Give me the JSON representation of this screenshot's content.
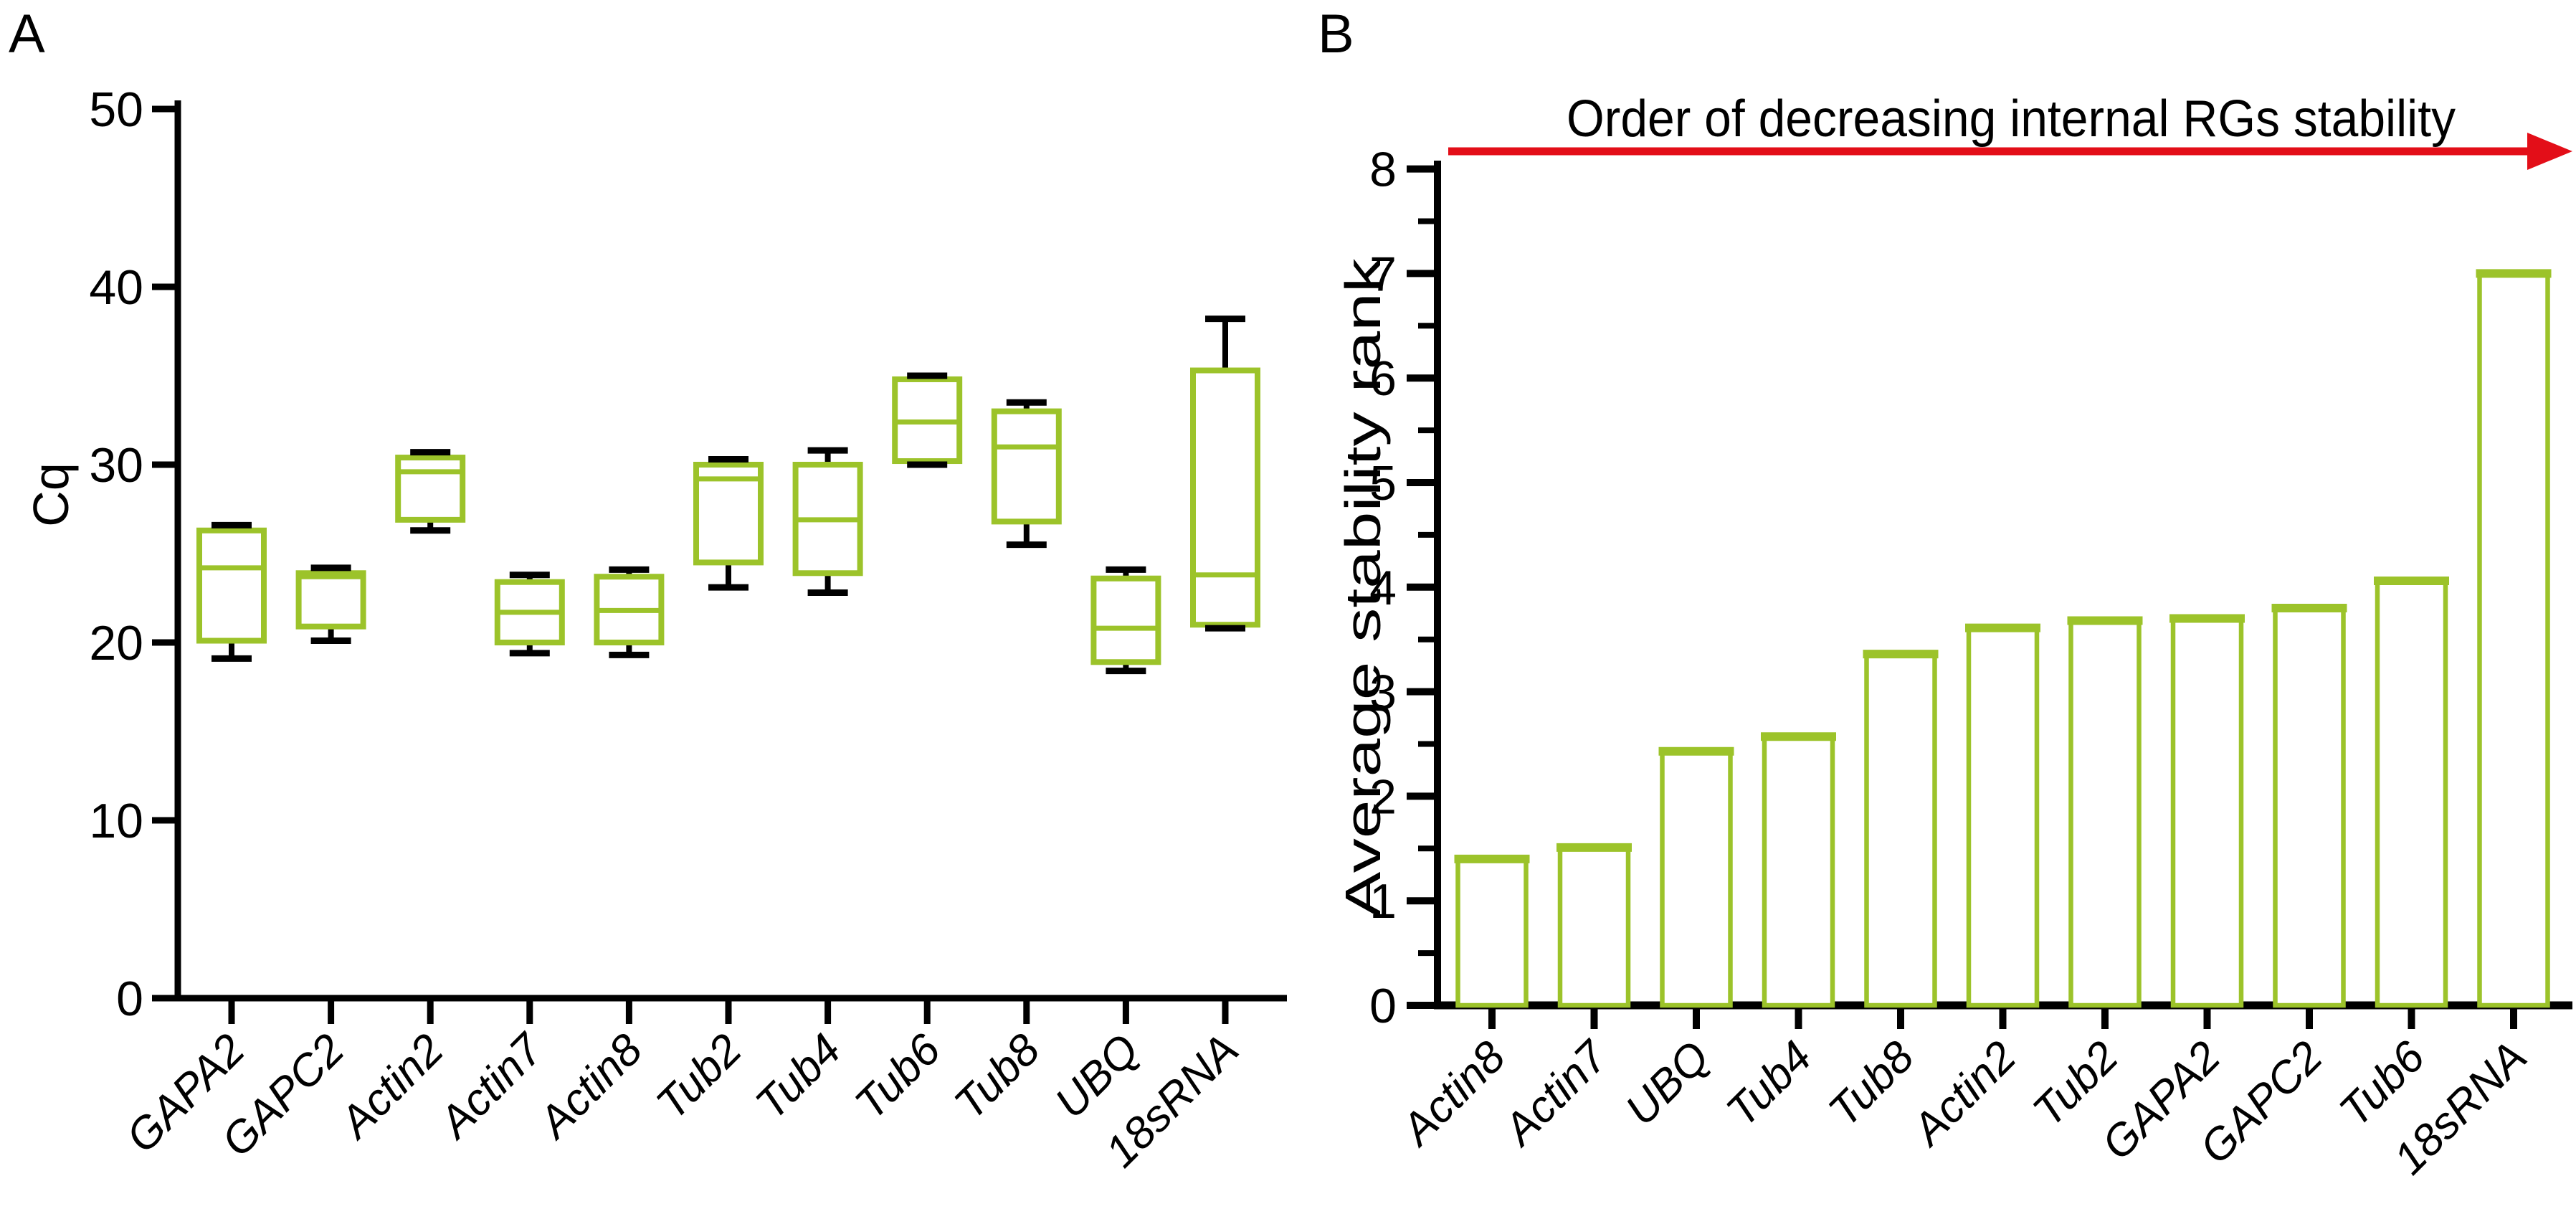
{
  "figure": {
    "panel_a_label": "A",
    "panel_b_label": "B"
  },
  "colors": {
    "box_green": "#9cc32a",
    "arrow_red": "#e30e18",
    "axis_black": "#000000",
    "background": "#ffffff"
  },
  "chart_data": [
    {
      "id": "panel-a",
      "type": "boxplot",
      "title": "",
      "xlabel": "",
      "ylabel": "Cq",
      "ylim": [
        0,
        50
      ],
      "yticks": [
        0,
        10,
        20,
        30,
        40,
        50
      ],
      "grid": "off",
      "categories": [
        "GAPA2",
        "GAPC2",
        "Actin2",
        "Actin7",
        "Actin8",
        "Tub2",
        "Tub4",
        "Tub6",
        "Tub8",
        "UBQ",
        "18sRNA"
      ],
      "boxes": [
        {
          "name": "GAPA2",
          "min": 19.1,
          "q1": 20.1,
          "median": 24.2,
          "q3": 26.3,
          "max": 26.6
        },
        {
          "name": "GAPC2",
          "min": 20.1,
          "q1": 20.9,
          "median": 23.7,
          "q3": 23.9,
          "max": 24.2
        },
        {
          "name": "Actin2",
          "min": 26.3,
          "q1": 26.9,
          "median": 29.6,
          "q3": 30.4,
          "max": 30.7
        },
        {
          "name": "Actin7",
          "min": 19.4,
          "q1": 20.0,
          "median": 21.7,
          "q3": 23.4,
          "max": 23.8
        },
        {
          "name": "Actin8",
          "min": 19.3,
          "q1": 20.0,
          "median": 21.8,
          "q3": 23.7,
          "max": 24.1
        },
        {
          "name": "Tub2",
          "min": 23.1,
          "q1": 24.5,
          "median": 29.2,
          "q3": 30.0,
          "max": 30.3
        },
        {
          "name": "Tub4",
          "min": 22.8,
          "q1": 23.9,
          "median": 26.9,
          "q3": 30.0,
          "max": 30.8
        },
        {
          "name": "Tub6",
          "min": 30.0,
          "q1": 30.2,
          "median": 32.4,
          "q3": 34.8,
          "max": 35.0
        },
        {
          "name": "Tub8",
          "min": 25.5,
          "q1": 26.8,
          "median": 31.0,
          "q3": 33.0,
          "max": 33.5
        },
        {
          "name": "UBQ",
          "min": 18.4,
          "q1": 18.9,
          "median": 20.8,
          "q3": 23.6,
          "max": 24.1
        },
        {
          "name": "18sRNA",
          "min": 20.8,
          "q1": 21.0,
          "median": 23.8,
          "q3": 35.3,
          "max": 38.2
        }
      ]
    },
    {
      "id": "panel-b",
      "type": "bar",
      "title": "Order of decreasing internal RGs stability",
      "xlabel": "",
      "ylabel": "Average stability rank",
      "ylim": [
        0,
        8
      ],
      "yticks": [
        0,
        1,
        2,
        3,
        4,
        5,
        6,
        7,
        8
      ],
      "minor_tick_step": 0.5,
      "grid": "off",
      "legend": "none",
      "categories": [
        "Actin8",
        "Actin7",
        "UBQ",
        "Tub4",
        "Tub8",
        "Actin2",
        "Tub2",
        "GAPA2",
        "GAPC2",
        "Tub6",
        "18sRNA"
      ],
      "values": [
        1.4,
        1.51,
        2.43,
        2.57,
        3.36,
        3.61,
        3.68,
        3.7,
        3.8,
        4.06,
        7.0
      ],
      "annotation_arrow": {
        "label": "Order of decreasing internal RGs stability",
        "direction": "right"
      }
    }
  ]
}
